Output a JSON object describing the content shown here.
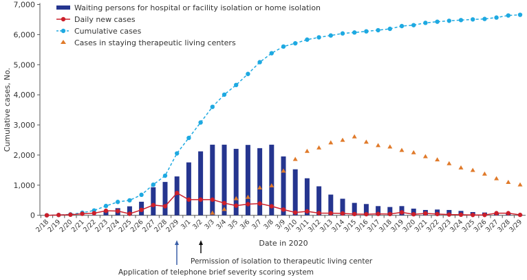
{
  "chart_data": {
    "type": "bar+line",
    "ylabel": "Cumulative cases, No.",
    "xlabel": "Date in 2020",
    "ylim": [
      0,
      7000
    ],
    "yticks": [
      "0",
      "1,000",
      "2,000",
      "3,000",
      "4,000",
      "5,000",
      "6,000",
      "7,000"
    ],
    "ytick_values": [
      0,
      1000,
      2000,
      3000,
      4000,
      5000,
      6000,
      7000
    ],
    "grid": false,
    "legend_position": "top-left",
    "categories": [
      "2/18",
      "2/19",
      "2/20",
      "2/21",
      "2/22",
      "2/23",
      "2/24",
      "2/25",
      "2/26",
      "2/27",
      "2/28",
      "2/29",
      "3/1",
      "3/2",
      "3/3",
      "3/4",
      "3/5",
      "3/6",
      "3/7",
      "3/8",
      "3/9",
      "3/10",
      "3/11",
      "3/12",
      "3/13",
      "3/14",
      "3/15",
      "3/16",
      "3/17",
      "3/18",
      "3/19",
      "3/20",
      "3/21",
      "3/22",
      "3/23",
      "3/24",
      "3/25",
      "3/26",
      "3/27",
      "3/28",
      "3/29"
    ],
    "series": [
      {
        "name": "Waiting persons for hospital or facility isolation or home isolation",
        "type": "bar",
        "color": "#25358f",
        "values": [
          0,
          0,
          0,
          5,
          10,
          145,
          237,
          298,
          450,
          931,
          1107,
          1290,
          1756,
          2122,
          2344,
          2344,
          2206,
          2336,
          2229,
          2344,
          1954,
          1527,
          1229,
          962,
          687,
          550,
          412,
          374,
          305,
          275,
          305,
          221,
          176,
          191,
          176,
          145,
          107,
          92,
          60,
          84,
          20
        ]
      },
      {
        "name": "Daily new cases",
        "type": "line",
        "color": "#cc1f2a",
        "values": [
          0,
          10,
          20,
          50,
          70,
          150,
          140,
          50,
          180,
          340,
          300,
          740,
          520,
          520,
          520,
          405,
          320,
          370,
          390,
          300,
          190,
          92,
          131,
          73,
          69,
          62,
          41,
          35,
          46,
          41,
          97,
          34,
          62,
          41,
          24,
          20,
          10,
          10,
          70,
          70,
          14
        ]
      },
      {
        "name": "Cumulative cases",
        "type": "dashed-line",
        "color": "#1ea9e1",
        "values": [
          0,
          10,
          30,
          85,
          160,
          310,
          443,
          497,
          680,
          1017,
          1314,
          2055,
          2569,
          3081,
          3600,
          4006,
          4327,
          4693,
          5084,
          5381,
          5603,
          5710,
          5832,
          5908,
          5970,
          6038,
          6069,
          6107,
          6145,
          6191,
          6282,
          6313,
          6389,
          6427,
          6458,
          6481,
          6504,
          6519,
          6565,
          6634,
          6657
        ]
      },
      {
        "name": "Cases in staying therapeutic living centers",
        "type": "scatter-triangle",
        "color": "#e07a2a",
        "values": [
          null,
          null,
          null,
          null,
          null,
          null,
          null,
          null,
          null,
          null,
          null,
          null,
          null,
          null,
          80,
          200,
          557,
          603,
          916,
          985,
          1473,
          1862,
          2130,
          2244,
          2412,
          2496,
          2611,
          2435,
          2321,
          2275,
          2160,
          2084,
          1954,
          1847,
          1718,
          1580,
          1496,
          1374,
          1221,
          1099,
          1015
        ]
      }
    ],
    "annotations": [
      {
        "text": "Application of telephone brief severity scoring system",
        "at": "2/29",
        "arrow_color": "#3a5fa8"
      },
      {
        "text": "Permission of isolation to therapeutic living center",
        "at": "3/2",
        "arrow_color": "#111111"
      }
    ]
  }
}
